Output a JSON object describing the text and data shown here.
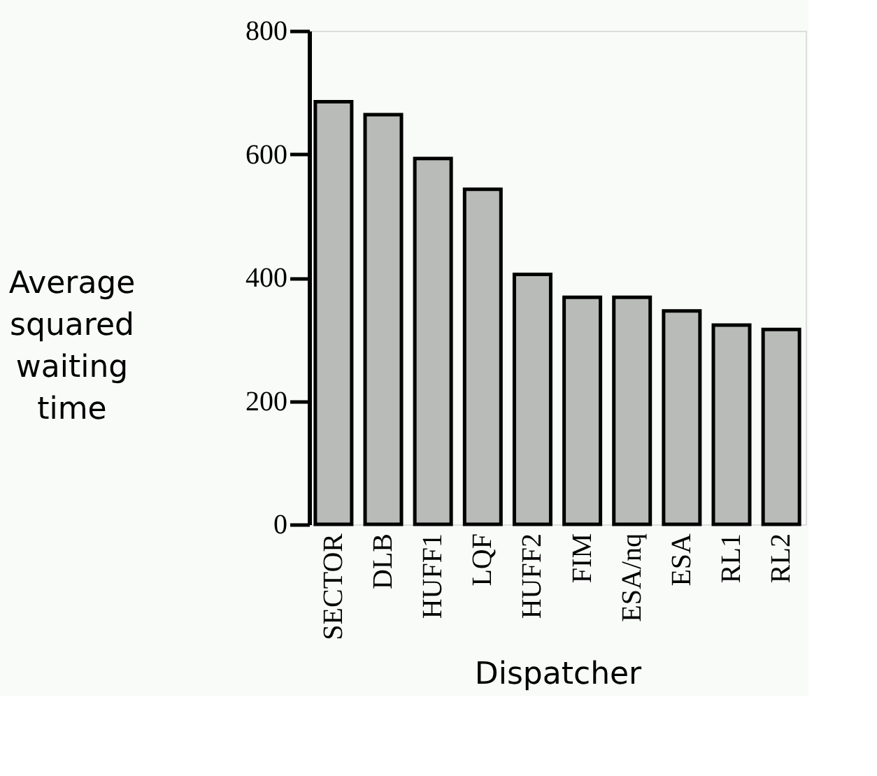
{
  "chart_data": {
    "type": "bar",
    "xlabel": "Dispatcher",
    "ylabel": "Average squared waiting time",
    "categories": [
      "SECTOR",
      "DLB",
      "HUFF1",
      "LQF",
      "HUFF2",
      "FIM",
      "ESA/nq",
      "ESA",
      "RL1",
      "RL2"
    ],
    "values": [
      685,
      664,
      593,
      543,
      405,
      368,
      368,
      346,
      323,
      316
    ],
    "color": "#b8bbb8",
    "ylim": [
      0,
      800
    ],
    "yticks": [
      0,
      200,
      400,
      600,
      800
    ],
    "grid": false
  }
}
